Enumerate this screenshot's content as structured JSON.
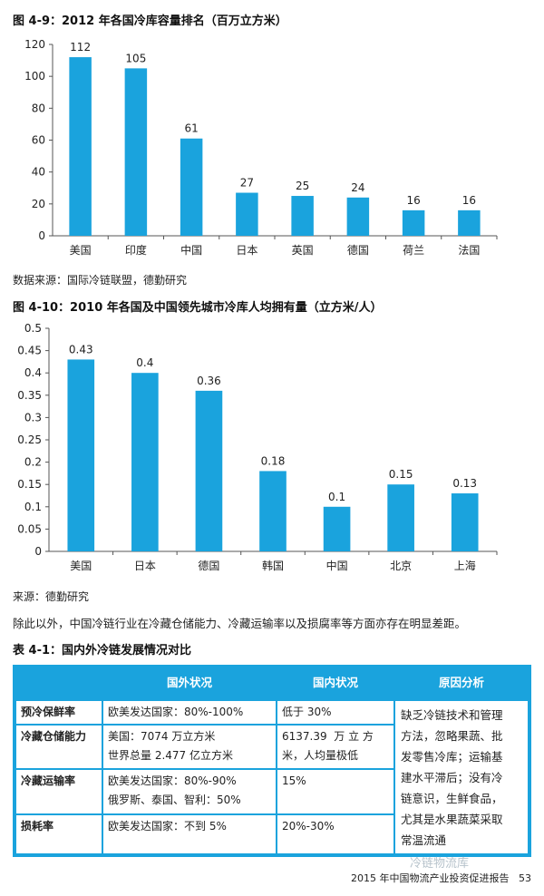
{
  "figure1": {
    "title": "图 4-9：2012 年各国冷库容量排名（百万立方米）",
    "source": "数据来源：国际冷链联盟，德勤研究"
  },
  "figure2": {
    "title": "图 4-10：2010 年各国及中国领先城市冷库人均拥有量（立方米/人）",
    "source": "来源：德勤研究"
  },
  "paragraph": "除此以外，中国冷链行业在冷藏仓储能力、冷藏运输率以及损腐率等方面亦存在明显差距。",
  "table": {
    "title": "表 4-1：国内外冷链发展情况对比",
    "headers": [
      "国外状况",
      "国内状况",
      "原因分析"
    ],
    "rows": [
      {
        "label": "预冷保鲜率",
        "foreign": [
          "欧美发达国家：80%-100%"
        ],
        "domestic": [
          "低于 30%"
        ]
      },
      {
        "label": "冷藏仓储能力",
        "foreign": [
          "美国：7074 万立方米",
          "世界总量 2.477 亿立方米"
        ],
        "domestic": [
          "6137.39  万 立 方",
          "米，人均量极低"
        ]
      },
      {
        "label": "冷藏运输率",
        "foreign": [
          "欧美发达国家：80%-90%",
          "俄罗斯、泰国、智利：50%"
        ],
        "domestic": [
          "15%"
        ]
      },
      {
        "label": "损耗率",
        "foreign": [
          "欧美发达国家：不到 5%"
        ],
        "domestic": [
          "20%-30%"
        ]
      }
    ],
    "analysis": [
      "缺乏冷链技术和管理",
      "方法，忽略果蔬、批",
      "发零售冷库；运输基",
      "建水平滞后；没有冷",
      "链意识，生鲜食品，",
      "尤其是水果蔬菜采取",
      "常温流通"
    ]
  },
  "footer": "2015 年中国物流产业投资促进报告   53",
  "watermark": "冷链物流库",
  "chart_data": [
    {
      "type": "bar",
      "categories": [
        "美国",
        "印度",
        "中国",
        "日本",
        "英国",
        "德国",
        "荷兰",
        "法国"
      ],
      "values": [
        112,
        105,
        61,
        27,
        25,
        24,
        16,
        16
      ],
      "ylim": [
        0,
        120
      ],
      "yticks": [
        0,
        20,
        40,
        60,
        80,
        100,
        120
      ],
      "color": "#1aa3dd",
      "grid": false
    },
    {
      "type": "bar",
      "categories": [
        "美国",
        "日本",
        "德国",
        "韩国",
        "中国",
        "北京",
        "上海"
      ],
      "values": [
        0.43,
        0.4,
        0.36,
        0.18,
        0.1,
        0.15,
        0.13
      ],
      "value_labels": [
        "0.43",
        "0.4",
        "0.36",
        "0.18",
        "0.1",
        "0.15",
        "0.13"
      ],
      "ylim": [
        0,
        0.5
      ],
      "yticks": [
        0,
        0.05,
        0.1,
        0.15,
        0.2,
        0.25,
        0.3,
        0.35,
        0.4,
        0.45,
        0.5
      ],
      "ytick_labels": [
        "0",
        "0.05",
        "0.1",
        "0.15",
        "0.2",
        "0.25",
        "0.3",
        "0.35",
        "0.4",
        "0.45",
        "0.5"
      ],
      "color": "#1aa3dd",
      "grid": false
    }
  ]
}
